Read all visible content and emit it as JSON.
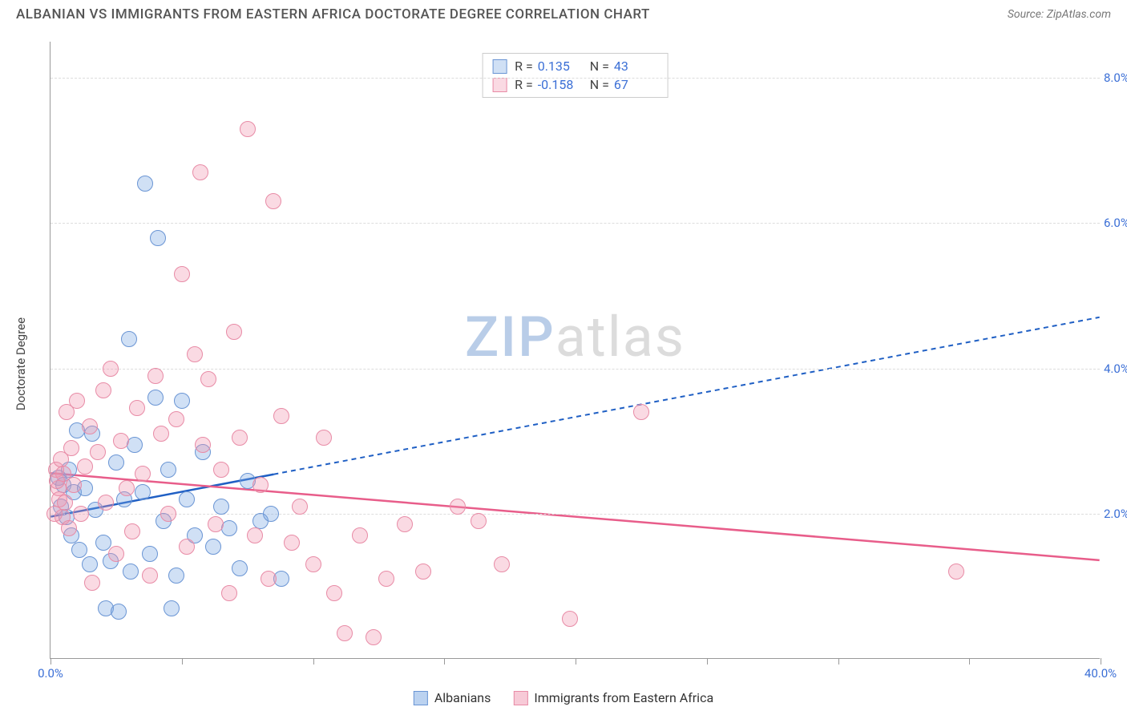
{
  "header": {
    "title": "ALBANIAN VS IMMIGRANTS FROM EASTERN AFRICA DOCTORATE DEGREE CORRELATION CHART",
    "source": "Source: ZipAtlas.com"
  },
  "watermark": {
    "part1": "ZIP",
    "part2": "atlas"
  },
  "chart": {
    "type": "scatter",
    "background_color": "#ffffff",
    "grid_color": "#dddddd",
    "axis_color": "#999999",
    "y_axis_label": "Doctorate Degree",
    "xlim": [
      0,
      40
    ],
    "ylim": [
      0,
      8.5
    ],
    "x_ticks": [
      0,
      5,
      10,
      15,
      20,
      25,
      30,
      35,
      40
    ],
    "x_tick_labels": {
      "0": "0.0%",
      "40": "40.0%"
    },
    "y_ticks": [
      2,
      4,
      6,
      8
    ],
    "y_tick_labels": {
      "2": "2.0%",
      "4": "4.0%",
      "6": "6.0%",
      "8": "8.0%"
    },
    "tick_label_color": "#3b6fd6",
    "series": [
      {
        "name": "Albanians",
        "label": "Albanians",
        "fill": "rgba(120,165,225,0.35)",
        "stroke": "#6a95d4",
        "marker_radius": 10,
        "R": "0.135",
        "N": "43",
        "trend": {
          "solid_to_x": 8.5,
          "y_at_0": 1.95,
          "y_at_40": 4.7,
          "color": "#1f5fc4",
          "width": 2.5,
          "dash": "6,5"
        },
        "points": [
          [
            0.3,
            2.5
          ],
          [
            0.4,
            2.1
          ],
          [
            0.5,
            2.4
          ],
          [
            0.6,
            1.95
          ],
          [
            0.7,
            2.6
          ],
          [
            0.8,
            1.7
          ],
          [
            0.9,
            2.3
          ],
          [
            1.0,
            3.15
          ],
          [
            1.1,
            1.5
          ],
          [
            1.3,
            2.35
          ],
          [
            1.5,
            1.3
          ],
          [
            1.6,
            3.1
          ],
          [
            1.7,
            2.05
          ],
          [
            2.0,
            1.6
          ],
          [
            2.1,
            0.7
          ],
          [
            2.3,
            1.35
          ],
          [
            2.5,
            2.7
          ],
          [
            2.6,
            0.65
          ],
          [
            2.8,
            2.2
          ],
          [
            3.0,
            4.4
          ],
          [
            3.05,
            1.2
          ],
          [
            3.2,
            2.95
          ],
          [
            3.5,
            2.3
          ],
          [
            3.6,
            6.55
          ],
          [
            3.8,
            1.45
          ],
          [
            4.0,
            3.6
          ],
          [
            4.1,
            5.8
          ],
          [
            4.3,
            1.9
          ],
          [
            4.5,
            2.6
          ],
          [
            4.8,
            1.15
          ],
          [
            5.0,
            3.55
          ],
          [
            5.2,
            2.2
          ],
          [
            5.5,
            1.7
          ],
          [
            5.8,
            2.85
          ],
          [
            6.2,
            1.55
          ],
          [
            6.5,
            2.1
          ],
          [
            6.8,
            1.8
          ],
          [
            7.2,
            1.25
          ],
          [
            7.5,
            2.45
          ],
          [
            8.0,
            1.9
          ],
          [
            8.4,
            2.0
          ],
          [
            8.8,
            1.1
          ],
          [
            4.6,
            0.7
          ]
        ]
      },
      {
        "name": "Immigrants from Eastern Africa",
        "label": "Immigrants from Eastern Africa",
        "fill": "rgba(240,150,175,0.35)",
        "stroke": "#e88ba6",
        "marker_radius": 10,
        "R": "-0.158",
        "N": "67",
        "trend": {
          "solid_to_x": 40,
          "y_at_0": 2.55,
          "y_at_40": 1.35,
          "color": "#e85d8a",
          "width": 2.5,
          "dash": null
        },
        "points": [
          [
            0.2,
            2.6
          ],
          [
            0.3,
            2.35
          ],
          [
            0.35,
            2.2
          ],
          [
            0.4,
            2.75
          ],
          [
            0.45,
            1.95
          ],
          [
            0.5,
            2.55
          ],
          [
            0.55,
            2.15
          ],
          [
            0.6,
            3.4
          ],
          [
            0.7,
            1.8
          ],
          [
            0.8,
            2.9
          ],
          [
            0.9,
            2.4
          ],
          [
            1.0,
            3.55
          ],
          [
            1.15,
            2.0
          ],
          [
            1.3,
            2.65
          ],
          [
            1.5,
            3.2
          ],
          [
            1.6,
            1.05
          ],
          [
            1.8,
            2.85
          ],
          [
            2.0,
            3.7
          ],
          [
            2.1,
            2.15
          ],
          [
            2.3,
            4.0
          ],
          [
            2.5,
            1.45
          ],
          [
            2.7,
            3.0
          ],
          [
            2.9,
            2.35
          ],
          [
            3.1,
            1.75
          ],
          [
            3.3,
            3.45
          ],
          [
            3.5,
            2.55
          ],
          [
            3.8,
            1.15
          ],
          [
            4.0,
            3.9
          ],
          [
            4.2,
            3.1
          ],
          [
            4.5,
            2.0
          ],
          [
            4.8,
            3.3
          ],
          [
            5.0,
            5.3
          ],
          [
            5.2,
            1.55
          ],
          [
            5.5,
            4.2
          ],
          [
            5.7,
            6.7
          ],
          [
            5.8,
            2.95
          ],
          [
            6.0,
            3.85
          ],
          [
            6.3,
            1.85
          ],
          [
            6.5,
            2.6
          ],
          [
            6.8,
            0.9
          ],
          [
            7.0,
            4.5
          ],
          [
            7.2,
            3.05
          ],
          [
            7.5,
            7.3
          ],
          [
            7.8,
            1.7
          ],
          [
            8.0,
            2.4
          ],
          [
            8.3,
            1.1
          ],
          [
            8.5,
            6.3
          ],
          [
            8.8,
            3.35
          ],
          [
            9.2,
            1.6
          ],
          [
            9.5,
            2.1
          ],
          [
            10.0,
            1.3
          ],
          [
            10.4,
            3.05
          ],
          [
            10.8,
            0.9
          ],
          [
            11.2,
            0.35
          ],
          [
            11.8,
            1.7
          ],
          [
            12.3,
            0.3
          ],
          [
            12.8,
            1.1
          ],
          [
            13.5,
            1.85
          ],
          [
            14.2,
            1.2
          ],
          [
            15.5,
            2.1
          ],
          [
            16.3,
            1.9
          ],
          [
            17.2,
            1.3
          ],
          [
            19.8,
            0.55
          ],
          [
            22.5,
            3.4
          ],
          [
            34.5,
            1.2
          ],
          [
            0.15,
            2.0
          ],
          [
            0.25,
            2.45
          ]
        ]
      }
    ]
  },
  "bottom_legend": [
    {
      "swatch_fill": "rgba(120,165,225,0.5)",
      "swatch_stroke": "#6a95d4",
      "label": "Albanians"
    },
    {
      "swatch_fill": "rgba(240,150,175,0.5)",
      "swatch_stroke": "#e88ba6",
      "label": "Immigrants from Eastern Africa"
    }
  ]
}
